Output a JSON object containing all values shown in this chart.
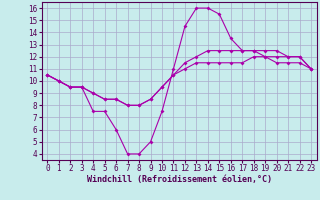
{
  "xlabel": "Windchill (Refroidissement éolien,°C)",
  "bg_color": "#c8ecec",
  "line_color": "#aa00aa",
  "grid_color": "#aaaacc",
  "xlim": [
    -0.5,
    23.5
  ],
  "ylim": [
    3.5,
    16.5
  ],
  "xticks": [
    0,
    1,
    2,
    3,
    4,
    5,
    6,
    7,
    8,
    9,
    10,
    11,
    12,
    13,
    14,
    15,
    16,
    17,
    18,
    19,
    20,
    21,
    22,
    23
  ],
  "yticks": [
    4,
    5,
    6,
    7,
    8,
    9,
    10,
    11,
    12,
    13,
    14,
    15,
    16
  ],
  "line1_x": [
    0,
    1,
    2,
    3,
    4,
    5,
    6,
    7,
    8,
    9,
    10,
    11,
    12,
    13,
    14,
    15,
    16,
    17,
    18,
    19,
    20,
    21,
    22,
    23
  ],
  "line1_y": [
    10.5,
    10.0,
    9.5,
    9.5,
    7.5,
    7.5,
    6.0,
    4.0,
    4.0,
    5.0,
    7.5,
    11.0,
    14.5,
    16.0,
    16.0,
    15.5,
    13.5,
    12.5,
    12.5,
    12.0,
    11.5,
    11.5,
    11.5,
    11.0
  ],
  "line2_x": [
    0,
    1,
    2,
    3,
    4,
    5,
    6,
    7,
    8,
    9,
    10,
    11,
    12,
    13,
    14,
    15,
    16,
    17,
    18,
    19,
    20,
    21,
    22,
    23
  ],
  "line2_y": [
    10.5,
    10.0,
    9.5,
    9.5,
    9.0,
    8.5,
    8.5,
    8.0,
    8.0,
    8.5,
    9.5,
    10.5,
    11.0,
    11.5,
    11.5,
    11.5,
    11.5,
    11.5,
    12.0,
    12.0,
    12.0,
    12.0,
    12.0,
    11.0
  ],
  "line3_x": [
    0,
    1,
    2,
    3,
    4,
    5,
    6,
    7,
    8,
    9,
    10,
    11,
    12,
    13,
    14,
    15,
    16,
    17,
    18,
    19,
    20,
    21,
    22,
    23
  ],
  "line3_y": [
    10.5,
    10.0,
    9.5,
    9.5,
    9.0,
    8.5,
    8.5,
    8.0,
    8.0,
    8.5,
    9.5,
    10.5,
    11.5,
    12.0,
    12.5,
    12.5,
    12.5,
    12.5,
    12.5,
    12.5,
    12.5,
    12.0,
    12.0,
    11.0
  ],
  "tick_fontsize": 5.5,
  "xlabel_fontsize": 6.0,
  "spine_color": "#550055",
  "tick_color": "#550055"
}
